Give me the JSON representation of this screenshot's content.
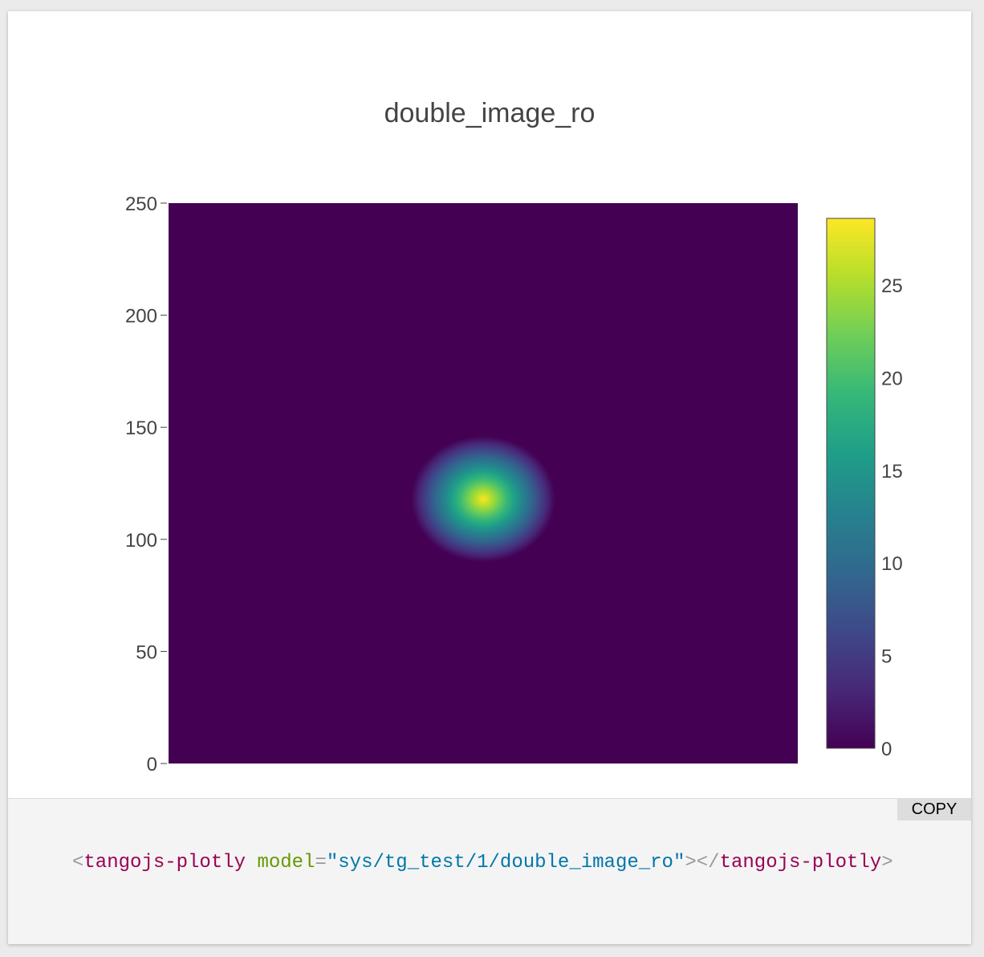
{
  "chart_data": {
    "type": "heatmap",
    "title": "double_image_ro",
    "xlabel": "",
    "ylabel": "",
    "colorscale": "Viridis",
    "colorscale_stops": [
      "#440154",
      "#482878",
      "#3e4989",
      "#31688e",
      "#26828e",
      "#1f9e89",
      "#35b779",
      "#6ece58",
      "#b5de2b",
      "#fde725"
    ],
    "background_value": 0,
    "ylim": [
      0,
      250
    ],
    "xlim": [
      0,
      280
    ],
    "yticks": [
      "0",
      "50",
      "100",
      "150",
      "200",
      "250"
    ],
    "zmin": 0,
    "zmax": 28.6,
    "colorbar_ticks": [
      "0",
      "5",
      "10",
      "15",
      "20",
      "25"
    ],
    "peak": {
      "x": 140,
      "y": 118,
      "value": 28.6
    },
    "spot_radius_x": 32,
    "spot_radius_y": 28
  },
  "code": {
    "copy_label": "COPY",
    "open_bracket": "<",
    "tag": "tangojs-plotly",
    "attr": "model",
    "eq": "=",
    "quote": "\"",
    "value": "sys/tg_test/1/double_image_ro",
    "open_close": ">",
    "close_open": "</",
    "close_tag": "tangojs-plotly",
    "close_end": ">"
  }
}
